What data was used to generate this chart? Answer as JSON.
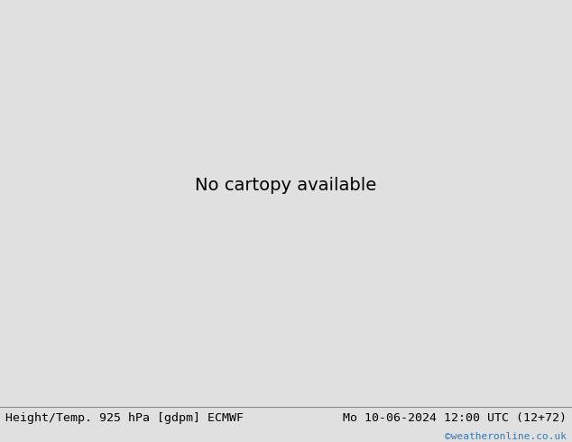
{
  "title_left": "Height/Temp. 925 hPa [gdpm] ECMWF",
  "title_right": "Mo 10-06-2024 12:00 UTC (12+72)",
  "credit": "©weatheronline.co.uk",
  "bg_color": "#e0e0e0",
  "bottom_bar_color": "#d0d0d0",
  "sea_color": "#d8d8d8",
  "land_color": "#c0c0c0",
  "green_area_color": "#c8f0a0",
  "title_fontsize": 9.5,
  "credit_fontsize": 8,
  "credit_color": "#3377bb",
  "figsize": [
    6.34,
    4.9
  ],
  "dpi": 100,
  "extent": [
    -30,
    50,
    25,
    72
  ],
  "contour_black": "#000000",
  "contour_orange": "#ff8800",
  "contour_lime": "#88cc00",
  "contour_cyan": "#00bbbb",
  "contour_red": "#dd2200",
  "contour_magenta": "#cc00aa",
  "lw_black": 1.4,
  "lw_color": 1.3
}
